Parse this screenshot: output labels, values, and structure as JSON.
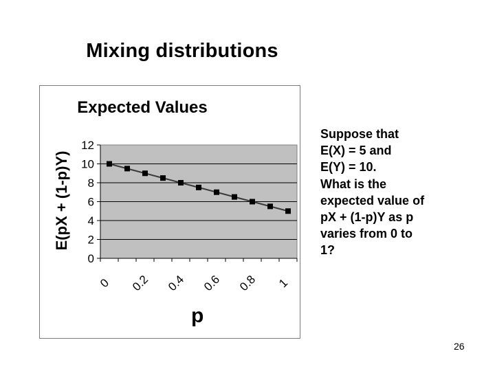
{
  "slide": {
    "title": "Mixing distributions",
    "page_number": "26",
    "note_lines": [
      "Suppose that",
      "E(X) = 5 and",
      "E(Y) = 10.",
      "What is the",
      "expected value of",
      "pX + (1-p)Y as p",
      "varies from 0 to",
      "1?"
    ]
  },
  "chart_data": {
    "type": "line",
    "title": "Expected Values",
    "xlabel": "p",
    "ylabel": "E(pX + (1-p)Y)",
    "x": [
      0,
      0.1,
      0.2,
      0.3,
      0.4,
      0.5,
      0.6,
      0.7,
      0.8,
      0.9,
      1.0
    ],
    "series": [
      {
        "name": "E(pX + (1-p)Y)",
        "values": [
          10,
          9.5,
          9,
          8.5,
          8,
          7.5,
          7,
          6.5,
          6,
          5.5,
          5
        ],
        "marker": "square",
        "color": "#000000"
      }
    ],
    "x_tick_labels": [
      "0",
      "0.2",
      "0.4",
      "0.6",
      "0.8",
      "1"
    ],
    "y_tick_labels": [
      "0",
      "2",
      "4",
      "6",
      "8",
      "10",
      "12"
    ],
    "ylim": [
      0,
      12
    ],
    "grid": true,
    "plot_background": "#c0c0c0",
    "legend": "none"
  }
}
